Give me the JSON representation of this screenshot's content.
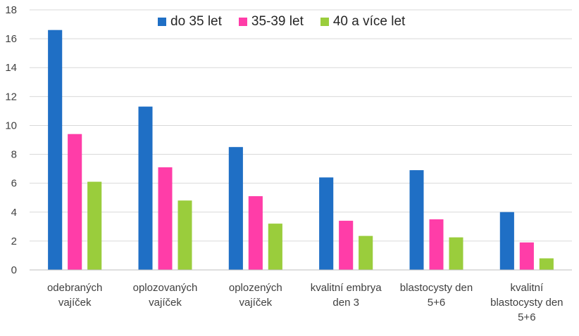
{
  "chart_data": {
    "type": "bar",
    "title": "",
    "xlabel": "",
    "ylabel": "",
    "ylim": [
      0,
      18
    ],
    "yticks": [
      0,
      2,
      4,
      6,
      8,
      10,
      12,
      14,
      16,
      18
    ],
    "grid": true,
    "legend_position": "top",
    "categories": [
      [
        "odebraných",
        "vajíček"
      ],
      [
        "oplozovaných",
        "vajíček"
      ],
      [
        "oplozených",
        "vajíček"
      ],
      [
        "kvalitní embrya",
        "den 3"
      ],
      [
        "blastocysty den",
        "5+6"
      ],
      [
        "kvalitní",
        "blastocysty den",
        "5+6"
      ]
    ],
    "series": [
      {
        "name": "do 35 let",
        "color": "#1f6fc5",
        "values": [
          16.6,
          11.3,
          8.5,
          6.4,
          6.9,
          4.0
        ]
      },
      {
        "name": "35-39 let",
        "color": "#ff3da8",
        "values": [
          9.4,
          7.1,
          5.1,
          3.4,
          3.5,
          1.9
        ]
      },
      {
        "name": "40 a více let",
        "color": "#9acd3c",
        "values": [
          6.1,
          4.8,
          3.2,
          2.35,
          2.25,
          0.8
        ]
      }
    ]
  }
}
